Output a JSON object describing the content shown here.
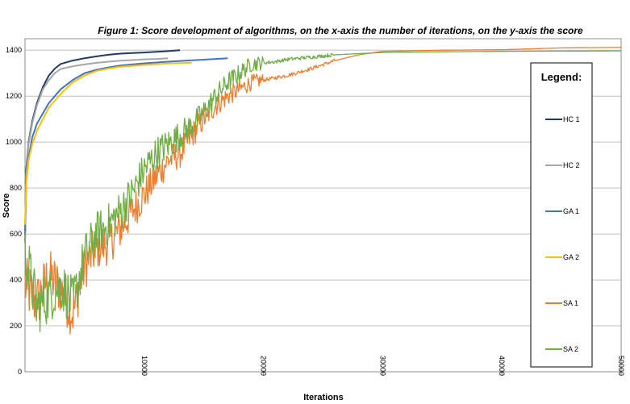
{
  "chart_data": {
    "type": "line",
    "title": "Figure 1: Score development of algorithms, on the x-axis the number of iterations, on the y-axis the score",
    "xlabel": "Iterations",
    "ylabel": "Score",
    "xlim": [
      0,
      50000
    ],
    "ylim": [
      0,
      1450
    ],
    "xticks": [
      10000,
      20000,
      30000,
      40000,
      50000
    ],
    "yticks": [
      0,
      200,
      400,
      600,
      800,
      1000,
      1200,
      1400
    ],
    "grid": true,
    "legend": {
      "title": "Legend:",
      "placement": "right"
    },
    "series": [
      {
        "name": "HC 1",
        "color": "#1f3864",
        "x": [
          0,
          100,
          300,
          600,
          1000,
          1500,
          2000,
          2500,
          3000,
          4000,
          5000,
          6000,
          7000,
          8000,
          9000,
          10000,
          11000,
          12000,
          13000
        ],
        "y": [
          560,
          880,
          1000,
          1090,
          1170,
          1240,
          1290,
          1320,
          1340,
          1355,
          1365,
          1373,
          1380,
          1385,
          1388,
          1390,
          1393,
          1396,
          1400
        ]
      },
      {
        "name": "HC 2",
        "color": "#a6a6a6",
        "x": [
          0,
          100,
          300,
          600,
          1000,
          1500,
          2000,
          2500,
          3000,
          4000,
          5000,
          6000,
          7000,
          8000,
          9000,
          10000,
          11000,
          12000
        ],
        "y": [
          560,
          850,
          990,
          1080,
          1160,
          1230,
          1270,
          1300,
          1318,
          1330,
          1338,
          1345,
          1350,
          1354,
          1357,
          1360,
          1362,
          1365
        ]
      },
      {
        "name": "GA 1",
        "color": "#4472c4",
        "x": [
          0,
          100,
          300,
          600,
          1000,
          2000,
          3000,
          4000,
          5000,
          6000,
          7000,
          8000,
          10000,
          12000,
          14000,
          16000,
          17000
        ],
        "y": [
          600,
          820,
          930,
          1020,
          1080,
          1170,
          1230,
          1270,
          1300,
          1315,
          1325,
          1333,
          1343,
          1350,
          1356,
          1362,
          1365
        ]
      },
      {
        "name": "GA 2",
        "color": "#ffc000",
        "x": [
          0,
          100,
          300,
          600,
          1000,
          2000,
          3000,
          4000,
          5000,
          6000,
          7000,
          8000,
          10000,
          12000,
          14000
        ],
        "y": [
          640,
          820,
          920,
          990,
          1050,
          1150,
          1210,
          1260,
          1290,
          1310,
          1320,
          1328,
          1336,
          1342,
          1346
        ]
      },
      {
        "name": "SA 1",
        "color": "#ed7d31",
        "x": [
          0,
          1000,
          2000,
          3000,
          4000,
          5000,
          6000,
          7000,
          8000,
          9000,
          10000,
          11000,
          12000,
          13000,
          14000,
          15000,
          16000,
          17000,
          18000,
          19000,
          20000,
          21000,
          22000,
          24000,
          26000,
          28000,
          30000,
          35000,
          40000,
          45000,
          50000
        ],
        "y": [
          380,
          300,
          420,
          360,
          250,
          460,
          540,
          560,
          620,
          700,
          770,
          850,
          920,
          950,
          1030,
          1100,
          1160,
          1200,
          1230,
          1260,
          1270,
          1280,
          1290,
          1320,
          1355,
          1380,
          1395,
          1400,
          1402,
          1410,
          1412
        ]
      },
      {
        "name": "SA 2",
        "color": "#70ad47",
        "x": [
          0,
          1000,
          2000,
          3000,
          4000,
          5000,
          6000,
          7000,
          8000,
          9000,
          10000,
          11000,
          12000,
          13000,
          14000,
          15000,
          16000,
          17000,
          18000,
          19000,
          20000,
          21000,
          22000,
          24000,
          26000,
          28000,
          30000,
          35000,
          40000,
          45000,
          50000
        ],
        "y": [
          520,
          280,
          330,
          380,
          300,
          500,
          600,
          640,
          700,
          780,
          880,
          950,
          990,
          1030,
          1070,
          1130,
          1200,
          1260,
          1300,
          1340,
          1345,
          1350,
          1360,
          1370,
          1380,
          1385,
          1390,
          1393,
          1395,
          1396,
          1397
        ]
      }
    ]
  }
}
